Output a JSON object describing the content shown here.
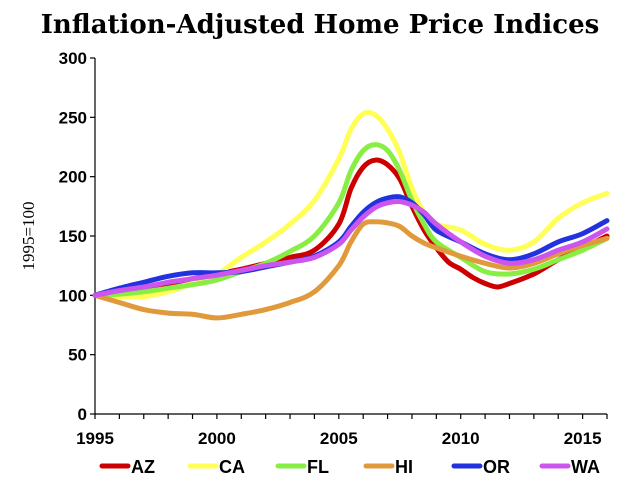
{
  "chart_data": {
    "type": "line",
    "title": "Inflation-Adjusted Home Price Indices",
    "ylabel": "1995=100",
    "xlabel": "",
    "xlim": [
      1995,
      2016
    ],
    "ylim": [
      0,
      300
    ],
    "x_ticks": [
      1995,
      2000,
      2005,
      2010,
      2015
    ],
    "y_ticks": [
      0,
      50,
      100,
      150,
      200,
      250,
      300
    ],
    "grid": false,
    "legend_position": "bottom",
    "series": [
      {
        "name": "AZ",
        "color": "#cc0000",
        "points": [
          [
            1995,
            100
          ],
          [
            1996,
            104
          ],
          [
            1997,
            106
          ],
          [
            1998,
            110
          ],
          [
            1999,
            114
          ],
          [
            2000,
            118
          ],
          [
            2001,
            122
          ],
          [
            2002,
            127
          ],
          [
            2003,
            132
          ],
          [
            2004,
            138
          ],
          [
            2005,
            160
          ],
          [
            2005.5,
            190
          ],
          [
            2006,
            208
          ],
          [
            2006.5,
            214
          ],
          [
            2007,
            210
          ],
          [
            2007.5,
            198
          ],
          [
            2008,
            175
          ],
          [
            2008.5,
            155
          ],
          [
            2009,
            140
          ],
          [
            2009.5,
            128
          ],
          [
            2010,
            122
          ],
          [
            2010.5,
            115
          ],
          [
            2011,
            110
          ],
          [
            2011.5,
            107
          ],
          [
            2012,
            110
          ],
          [
            2013,
            118
          ],
          [
            2014,
            130
          ],
          [
            2015,
            140
          ],
          [
            2016,
            150
          ]
        ]
      },
      {
        "name": "CA",
        "color": "#ffff55",
        "points": [
          [
            1995,
            100
          ],
          [
            1996,
            99
          ],
          [
            1997,
            99
          ],
          [
            1998,
            103
          ],
          [
            1999,
            110
          ],
          [
            2000,
            118
          ],
          [
            2001,
            132
          ],
          [
            2002,
            145
          ],
          [
            2003,
            160
          ],
          [
            2004,
            180
          ],
          [
            2005,
            215
          ],
          [
            2005.5,
            240
          ],
          [
            2006,
            253
          ],
          [
            2006.5,
            252
          ],
          [
            2007,
            240
          ],
          [
            2007.5,
            220
          ],
          [
            2008,
            190
          ],
          [
            2008.5,
            170
          ],
          [
            2009,
            160
          ],
          [
            2010,
            155
          ],
          [
            2011,
            143
          ],
          [
            2012,
            138
          ],
          [
            2013,
            145
          ],
          [
            2014,
            165
          ],
          [
            2015,
            178
          ],
          [
            2016,
            186
          ]
        ]
      },
      {
        "name": "FL",
        "color": "#88ee44",
        "points": [
          [
            1995,
            100
          ],
          [
            1996,
            101
          ],
          [
            1997,
            103
          ],
          [
            1998,
            106
          ],
          [
            1999,
            109
          ],
          [
            2000,
            113
          ],
          [
            2001,
            120
          ],
          [
            2002,
            127
          ],
          [
            2003,
            137
          ],
          [
            2004,
            150
          ],
          [
            2005,
            178
          ],
          [
            2005.5,
            205
          ],
          [
            2006,
            222
          ],
          [
            2006.5,
            227
          ],
          [
            2007,
            222
          ],
          [
            2007.5,
            205
          ],
          [
            2008,
            180
          ],
          [
            2008.5,
            160
          ],
          [
            2009,
            145
          ],
          [
            2010,
            132
          ],
          [
            2011,
            120
          ],
          [
            2012,
            118
          ],
          [
            2013,
            122
          ],
          [
            2014,
            130
          ],
          [
            2015,
            138
          ],
          [
            2016,
            148
          ]
        ]
      },
      {
        "name": "HI",
        "color": "#e09a3c",
        "points": [
          [
            1995,
            100
          ],
          [
            1996,
            94
          ],
          [
            1997,
            88
          ],
          [
            1998,
            85
          ],
          [
            1999,
            84
          ],
          [
            2000,
            81
          ],
          [
            2001,
            84
          ],
          [
            2002,
            88
          ],
          [
            2003,
            94
          ],
          [
            2004,
            103
          ],
          [
            2005,
            125
          ],
          [
            2005.5,
            145
          ],
          [
            2006,
            160
          ],
          [
            2006.5,
            162
          ],
          [
            2007,
            161
          ],
          [
            2007.5,
            158
          ],
          [
            2008,
            150
          ],
          [
            2008.5,
            144
          ],
          [
            2009,
            140
          ],
          [
            2010,
            133
          ],
          [
            2011,
            127
          ],
          [
            2012,
            123
          ],
          [
            2013,
            127
          ],
          [
            2014,
            135
          ],
          [
            2015,
            142
          ],
          [
            2016,
            148
          ]
        ]
      },
      {
        "name": "OR",
        "color": "#2233dd",
        "points": [
          [
            1995,
            100
          ],
          [
            1996,
            106
          ],
          [
            1997,
            111
          ],
          [
            1998,
            116
          ],
          [
            1999,
            119
          ],
          [
            2000,
            119
          ],
          [
            2001,
            120
          ],
          [
            2002,
            124
          ],
          [
            2003,
            128
          ],
          [
            2004,
            133
          ],
          [
            2005,
            145
          ],
          [
            2005.5,
            158
          ],
          [
            2006,
            170
          ],
          [
            2006.5,
            178
          ],
          [
            2007,
            182
          ],
          [
            2007.5,
            183
          ],
          [
            2008,
            178
          ],
          [
            2008.5,
            168
          ],
          [
            2009,
            155
          ],
          [
            2010,
            145
          ],
          [
            2011,
            135
          ],
          [
            2012,
            130
          ],
          [
            2013,
            135
          ],
          [
            2014,
            145
          ],
          [
            2015,
            152
          ],
          [
            2016,
            163
          ]
        ]
      },
      {
        "name": "WA",
        "color": "#cc55ee",
        "points": [
          [
            1995,
            100
          ],
          [
            1996,
            104
          ],
          [
            1997,
            107
          ],
          [
            1998,
            111
          ],
          [
            1999,
            114
          ],
          [
            2000,
            117
          ],
          [
            2001,
            121
          ],
          [
            2002,
            125
          ],
          [
            2003,
            128
          ],
          [
            2004,
            132
          ],
          [
            2005,
            143
          ],
          [
            2005.5,
            155
          ],
          [
            2006,
            166
          ],
          [
            2006.5,
            174
          ],
          [
            2007,
            178
          ],
          [
            2007.5,
            179
          ],
          [
            2008,
            176
          ],
          [
            2008.5,
            170
          ],
          [
            2009,
            160
          ],
          [
            2010,
            145
          ],
          [
            2011,
            133
          ],
          [
            2012,
            127
          ],
          [
            2013,
            130
          ],
          [
            2014,
            138
          ],
          [
            2015,
            145
          ],
          [
            2016,
            156
          ]
        ]
      }
    ]
  }
}
